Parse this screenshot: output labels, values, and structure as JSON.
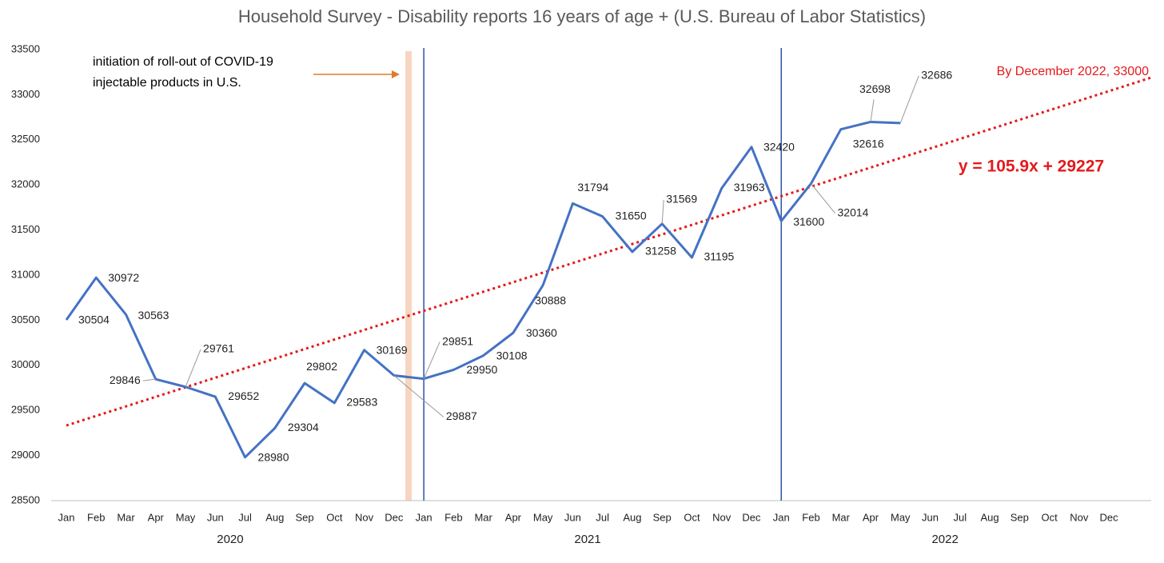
{
  "chart_data": {
    "type": "line",
    "title": "Household Survey - Disability reports 16 years of age + (U.S. Bureau of Labor Statistics)",
    "categories": [
      "Jan",
      "Feb",
      "Mar",
      "Apr",
      "May",
      "Jun",
      "Jul",
      "Aug",
      "Sep",
      "Oct",
      "Nov",
      "Dec",
      "Jan",
      "Feb",
      "Mar",
      "Apr",
      "May",
      "Jun",
      "Jul",
      "Aug",
      "Sep",
      "Oct",
      "Nov",
      "Dec",
      "Jan",
      "Feb",
      "Mar",
      "Apr",
      "May",
      "Jun",
      "Jul",
      "Aug",
      "Sep",
      "Oct",
      "Nov",
      "Dec"
    ],
    "years": [
      "2020",
      "2021",
      "2022"
    ],
    "values": [
      30504,
      30972,
      30563,
      29846,
      29761,
      29652,
      28980,
      29304,
      29802,
      29583,
      30169,
      29887,
      29851,
      29950,
      30108,
      30360,
      30888,
      31794,
      31650,
      31258,
      31569,
      31195,
      31963,
      32420,
      31600,
      32014,
      32616,
      32698,
      32686,
      null,
      null,
      null,
      null,
      null,
      null,
      null
    ],
    "color": "#4472c4",
    "data_labels": true,
    "ylim": [
      28500,
      33500
    ],
    "yticks": [
      28500,
      29000,
      29500,
      30000,
      30500,
      31000,
      31500,
      32000,
      32500,
      33000,
      33500
    ],
    "grid": false,
    "trendline": {
      "slope": 105.9,
      "intercept": 29227,
      "label": "y = 105.9x + 29227",
      "color": "#e31a1c"
    },
    "annotations": [
      "initiation of roll-out of COVID-19",
      "injectable products in U.S.",
      "By December 2022, 33000"
    ]
  }
}
